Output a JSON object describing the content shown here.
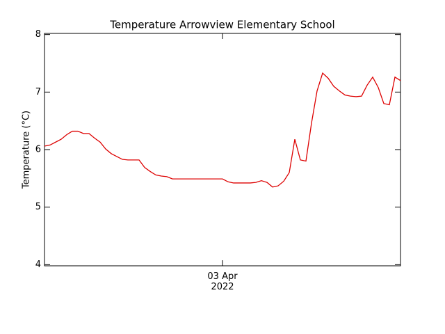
{
  "chart_data": {
    "type": "line",
    "title": "Temperature Arrowview Elementary School",
    "y_label": "Temperature (°C)",
    "color": "#dd0000",
    "categories": [
      null,
      null,
      null,
      null,
      null,
      null,
      null,
      null,
      null,
      null,
      null,
      null,
      null,
      null,
      null,
      null,
      null,
      null,
      null,
      null,
      null,
      null,
      null,
      null,
      null,
      null,
      null,
      null,
      null,
      null,
      null,
      null,
      "03 Apr 2022",
      null,
      null,
      null,
      null,
      null,
      null,
      null,
      null,
      null,
      null,
      null,
      null,
      null,
      null,
      null,
      null,
      null,
      null,
      null,
      null,
      null,
      null,
      null,
      null,
      null,
      null,
      null,
      null,
      null,
      null,
      null,
      null
    ],
    "values": [
      6.06,
      6.08,
      6.13,
      6.18,
      6.26,
      6.32,
      6.32,
      6.28,
      6.28,
      6.2,
      6.13,
      6.01,
      5.93,
      5.88,
      5.83,
      5.82,
      5.82,
      5.82,
      5.69,
      5.62,
      5.56,
      5.54,
      5.53,
      5.49,
      5.49,
      5.49,
      5.49,
      5.49,
      5.49,
      5.49,
      5.49,
      5.49,
      5.49,
      5.44,
      5.42,
      5.42,
      5.42,
      5.42,
      5.43,
      5.46,
      5.43,
      5.35,
      5.37,
      5.45,
      5.6,
      6.18,
      5.82,
      5.8,
      6.46,
      7.02,
      7.33,
      7.24,
      7.1,
      7.02,
      6.95,
      6.93,
      6.92,
      6.93,
      7.12,
      7.26,
      7.08,
      6.8,
      6.78,
      7.26,
      7.2
    ],
    "ylim": [
      3.98,
      8.02
    ],
    "yticks": [
      4,
      5,
      6,
      7,
      8
    ]
  }
}
